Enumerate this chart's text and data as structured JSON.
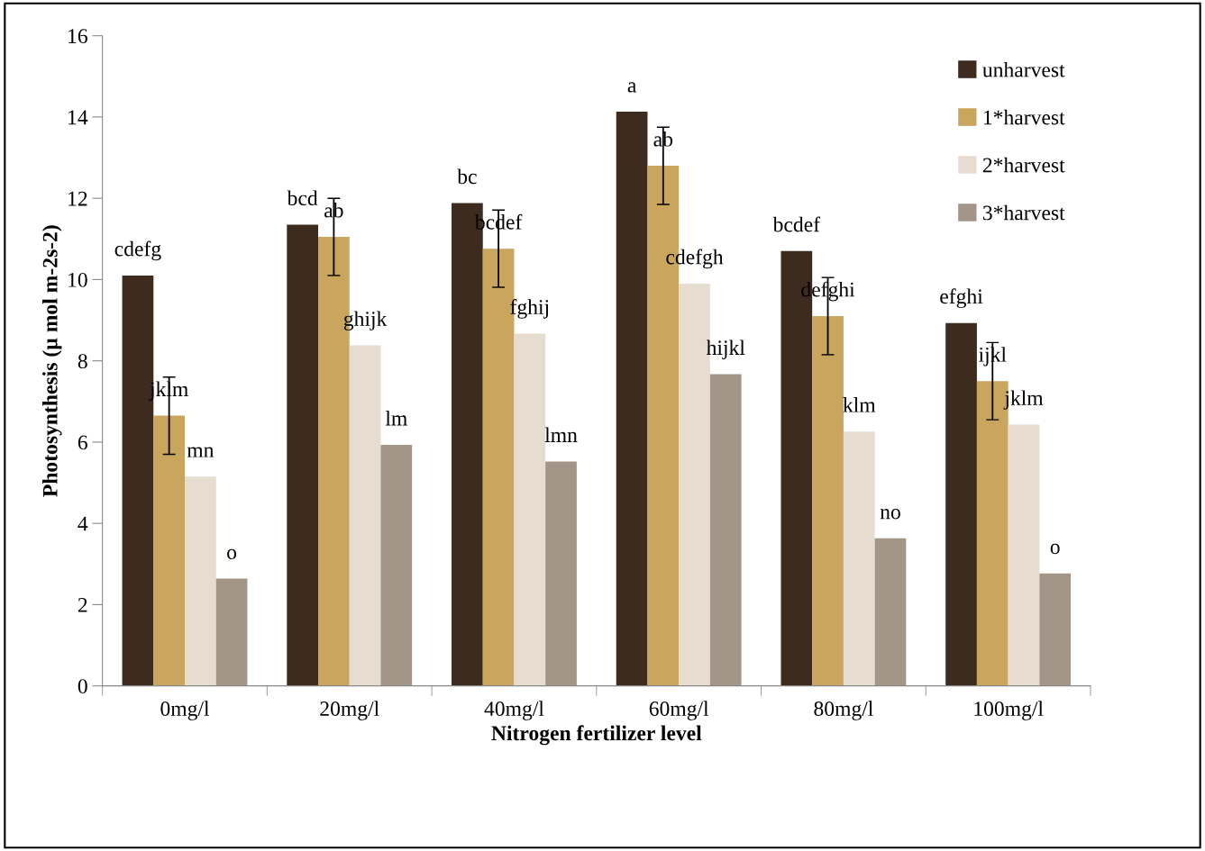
{
  "chart_data": {
    "type": "bar",
    "xlabel": "Nitrogen fertilizer level",
    "ylabel": "Photosynthesis (µ mol m-2s-2)",
    "categories": [
      "0mg/l",
      "20mg/l",
      "40mg/l",
      "60mg/l",
      "80mg/l",
      "100mg/l"
    ],
    "series": [
      {
        "name": "unharvest",
        "color": "#3d2b1f",
        "values": [
          10.1,
          11.35,
          11.88,
          14.13,
          10.7,
          8.93
        ],
        "value_labels": [
          "cdefg",
          "bcd",
          "bc",
          "a",
          "bcdef",
          "efghi"
        ]
      },
      {
        "name": "1*harvest",
        "color": "#c9a55e",
        "values": [
          6.65,
          11.05,
          10.76,
          12.8,
          9.1,
          7.5
        ],
        "errors": [
          0.95,
          0.95,
          0.95,
          0.95,
          0.95,
          0.95
        ],
        "value_labels": [
          "jklm",
          "ab",
          "bcdef",
          "ab",
          "defghi",
          "ijkl"
        ]
      },
      {
        "name": "2*harvest",
        "color": "#e6ddd0",
        "values": [
          5.15,
          8.38,
          8.67,
          9.9,
          6.26,
          6.43
        ],
        "value_labels": [
          "mn",
          "ghijk",
          "fghij",
          "cdefgh",
          "klm",
          "jklm"
        ]
      },
      {
        "name": "3*harvest",
        "color": "#a39587",
        "values": [
          2.64,
          5.93,
          5.52,
          7.67,
          3.63,
          2.77
        ],
        "value_labels": [
          "o",
          "lm",
          "lmn",
          "hijkl",
          "no",
          "o"
        ]
      }
    ],
    "ylim": [
      0,
      16
    ],
    "yticks": [
      0,
      2,
      4,
      6,
      8,
      10,
      12,
      14,
      16
    ],
    "grid": false,
    "legend": "top right"
  }
}
